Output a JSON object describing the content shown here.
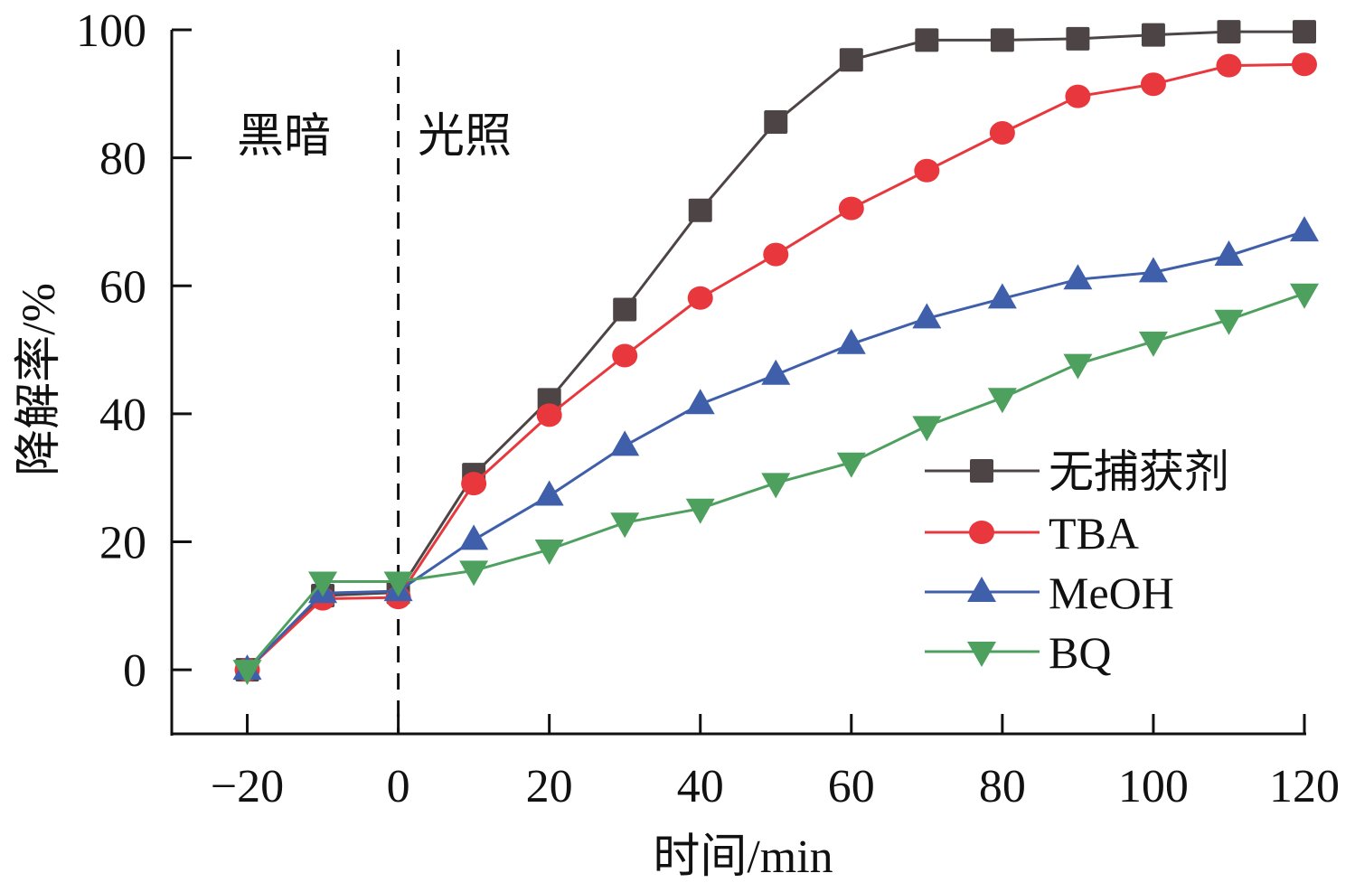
{
  "chart_data": {
    "type": "line",
    "title": "",
    "xlabel": "时间/min",
    "ylabel": "降解率/%",
    "xlim": [
      -30,
      120
    ],
    "ylim": [
      -10,
      100
    ],
    "xticks": [
      -20,
      0,
      20,
      40,
      60,
      80,
      100,
      120
    ],
    "yticks": [
      0,
      20,
      40,
      60,
      80,
      100
    ],
    "xtick_labels": [
      "−20",
      "0",
      "20",
      "40",
      "60",
      "80",
      "100",
      "120"
    ],
    "ytick_labels": [
      "0",
      "20",
      "40",
      "60",
      "80",
      "100"
    ],
    "grid": false,
    "legend_position": "bottom-right",
    "annotations": {
      "dark": "黑暗",
      "light": "光照",
      "divider_x": 0
    },
    "x": [
      -20,
      -10,
      0,
      10,
      20,
      30,
      40,
      50,
      60,
      70,
      80,
      90,
      100,
      110,
      120
    ],
    "series": [
      {
        "name": "无捕获剂",
        "color": "#4d4545",
        "marker": "square",
        "values": [
          0,
          11.6,
          12.1,
          30.5,
          42.2,
          56.3,
          71.8,
          85.6,
          95.3,
          98.4,
          98.4,
          98.6,
          99.2,
          99.7,
          99.7
        ]
      },
      {
        "name": "TBA",
        "color": "#e8383d",
        "marker": "circle",
        "values": [
          0,
          11.1,
          11.3,
          29.1,
          39.8,
          49.1,
          58.1,
          64.9,
          72.1,
          78.0,
          83.9,
          89.6,
          91.5,
          94.4,
          94.6
        ]
      },
      {
        "name": "MeOH",
        "color": "#3f5faa",
        "marker": "triangle-up",
        "values": [
          0,
          12.0,
          12.3,
          20.3,
          27.2,
          35.0,
          41.5,
          46.1,
          50.9,
          54.9,
          58.0,
          61.0,
          62.1,
          64.7,
          68.5
        ]
      },
      {
        "name": "BQ",
        "color": "#4ea05f",
        "marker": "triangle-down",
        "values": [
          0,
          13.8,
          13.8,
          15.5,
          18.8,
          23.0,
          25.2,
          29.2,
          32.4,
          38.1,
          42.5,
          47.8,
          51.3,
          54.7,
          58.8
        ]
      }
    ]
  }
}
